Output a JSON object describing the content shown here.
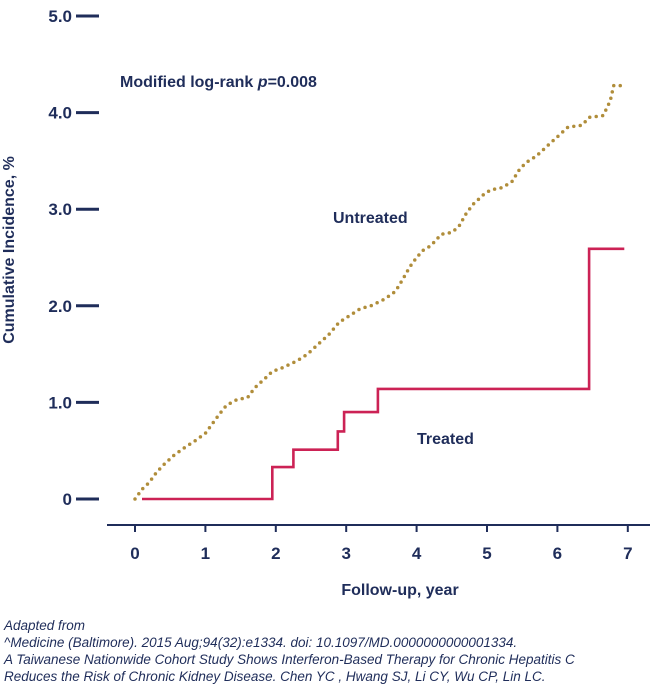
{
  "chart_data": {
    "type": "line",
    "xlabel": "Follow-up, year",
    "ylabel": "Cumulative Incidence, %",
    "xlim": [
      0,
      7
    ],
    "ylim": [
      0,
      5
    ],
    "x_ticks": [
      "0",
      "1",
      "2",
      "3",
      "4",
      "5",
      "6",
      "7"
    ],
    "y_ticks": [
      "0",
      "1.0",
      "2.0",
      "3.0",
      "4.0",
      "5.0"
    ],
    "annotation": "Modified log-rank p=0.008",
    "annotation_prefix": "Modified log-rank ",
    "annotation_p": "p",
    "annotation_value": "=0.008",
    "grid": false,
    "series": [
      {
        "name": "Untreated",
        "color": "#b08d3a",
        "style": "dotted",
        "points": [
          [
            0.0,
            0.0
          ],
          [
            0.1,
            0.1
          ],
          [
            0.2,
            0.17
          ],
          [
            0.3,
            0.27
          ],
          [
            0.4,
            0.35
          ],
          [
            0.55,
            0.45
          ],
          [
            0.7,
            0.53
          ],
          [
            0.85,
            0.6
          ],
          [
            1.0,
            0.68
          ],
          [
            1.1,
            0.78
          ],
          [
            1.2,
            0.88
          ],
          [
            1.3,
            0.97
          ],
          [
            1.45,
            1.03
          ],
          [
            1.6,
            1.05
          ],
          [
            1.7,
            1.15
          ],
          [
            1.85,
            1.25
          ],
          [
            1.95,
            1.32
          ],
          [
            2.1,
            1.36
          ],
          [
            2.3,
            1.43
          ],
          [
            2.45,
            1.5
          ],
          [
            2.6,
            1.6
          ],
          [
            2.75,
            1.7
          ],
          [
            2.9,
            1.83
          ],
          [
            3.05,
            1.9
          ],
          [
            3.2,
            1.97
          ],
          [
            3.35,
            2.0
          ],
          [
            3.55,
            2.07
          ],
          [
            3.7,
            2.15
          ],
          [
            3.8,
            2.27
          ],
          [
            3.9,
            2.4
          ],
          [
            4.0,
            2.5
          ],
          [
            4.1,
            2.58
          ],
          [
            4.2,
            2.62
          ],
          [
            4.3,
            2.7
          ],
          [
            4.35,
            2.74
          ],
          [
            4.5,
            2.76
          ],
          [
            4.6,
            2.82
          ],
          [
            4.7,
            2.95
          ],
          [
            4.8,
            3.05
          ],
          [
            4.95,
            3.15
          ],
          [
            5.05,
            3.2
          ],
          [
            5.2,
            3.22
          ],
          [
            5.35,
            3.28
          ],
          [
            5.45,
            3.4
          ],
          [
            5.55,
            3.48
          ],
          [
            5.7,
            3.55
          ],
          [
            5.85,
            3.65
          ],
          [
            6.0,
            3.75
          ],
          [
            6.15,
            3.85
          ],
          [
            6.35,
            3.87
          ],
          [
            6.45,
            3.95
          ],
          [
            6.65,
            3.97
          ],
          [
            6.75,
            4.12
          ],
          [
            6.8,
            4.28
          ],
          [
            6.95,
            4.28
          ]
        ]
      },
      {
        "name": "Treated",
        "color": "#cc2255",
        "style": "step",
        "points": [
          [
            0.1,
            0.0
          ],
          [
            1.95,
            0.0
          ],
          [
            1.95,
            0.33
          ],
          [
            2.25,
            0.33
          ],
          [
            2.25,
            0.51
          ],
          [
            2.88,
            0.51
          ],
          [
            2.88,
            0.7
          ],
          [
            2.97,
            0.7
          ],
          [
            2.97,
            0.9
          ],
          [
            3.45,
            0.9
          ],
          [
            3.45,
            1.14
          ],
          [
            6.45,
            1.14
          ],
          [
            6.45,
            2.59
          ],
          [
            6.95,
            2.59
          ]
        ]
      }
    ]
  },
  "citation": {
    "line1": "Adapted from",
    "line2": "^Medicine (Baltimore). 2015 Aug;94(32):e1334. doi: 10.1097/MD.0000000000001334.",
    "line3": " A Taiwanese Nationwide Cohort Study Shows Interferon-Based Therapy for Chronic Hepatitis C",
    "line4": " Reduces the Risk of Chronic Kidney Disease. Chen YC , Hwang SJ, Li CY, Wu CP, Lin LC."
  }
}
